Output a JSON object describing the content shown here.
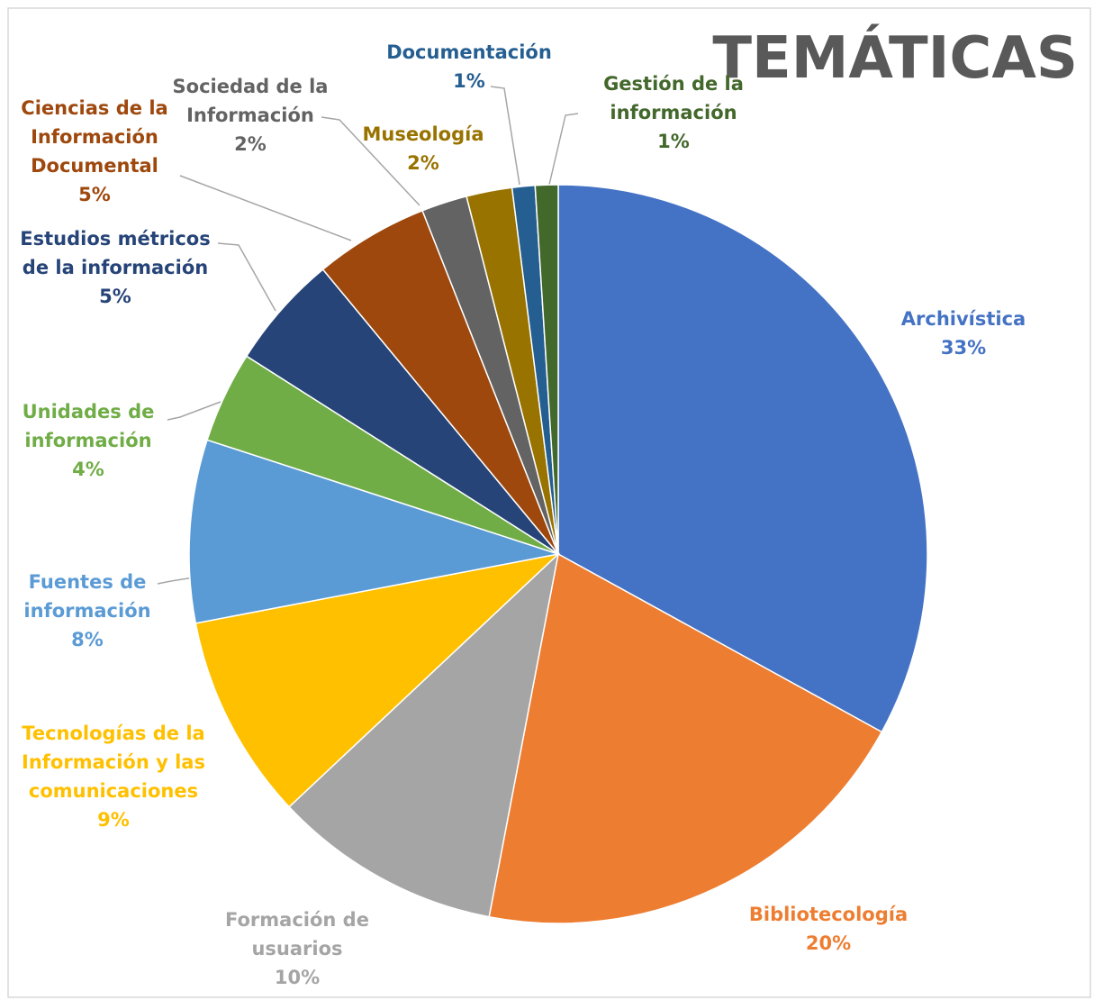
{
  "chart_data": {
    "type": "pie",
    "title": "TEMÁTICAS",
    "categories": [
      "Archivística",
      "Bibliotecología",
      "Formación de usuarios",
      "Tecnologías de la Información y las comunicaciones",
      "Fuentes de información",
      "Unidades de información",
      "Estudios métricos de la información",
      "Ciencias de la Información Documental",
      "Sociedad de la Información",
      "Museología",
      "Documentación",
      "Gestión de la información"
    ],
    "values": [
      33,
      20,
      10,
      9,
      8,
      4,
      5,
      5,
      2,
      2,
      1,
      1
    ],
    "value_labels": [
      "33%",
      "20%",
      "10%",
      "9%",
      "8%",
      "4%",
      "5%",
      "5%",
      "2%",
      "2%",
      "1%",
      "1%"
    ],
    "colors": [
      "#4472c4",
      "#ed7d31",
      "#a5a5a5",
      "#ffc000",
      "#5b9bd5",
      "#70ad47",
      "#264478",
      "#9e480e",
      "#636363",
      "#997300",
      "#255e91",
      "#43682b"
    ]
  }
}
